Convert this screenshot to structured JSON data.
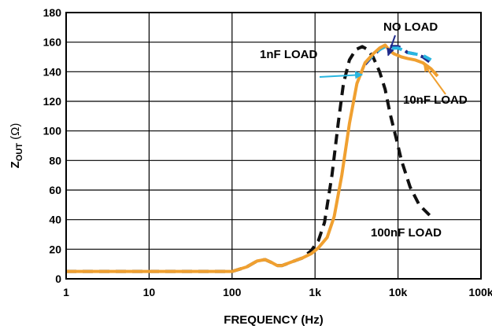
{
  "chart_data": {
    "type": "line",
    "xscale": "log",
    "xlim": [
      1,
      100000
    ],
    "ylim": [
      0,
      180
    ],
    "grid": true,
    "xlabel": "FREQUENCY (Hz)",
    "ylabel": {
      "main": "Z",
      "subscript": "OUT",
      "unit": " (Ω)"
    },
    "x_ticks": [
      {
        "value": 1,
        "label": "1"
      },
      {
        "value": 10,
        "label": "10"
      },
      {
        "value": 100,
        "label": "100"
      },
      {
        "value": 1000,
        "label": "1k"
      },
      {
        "value": 10000,
        "label": "10k"
      },
      {
        "value": 100000,
        "label": "100k"
      }
    ],
    "y_ticks": [
      0,
      20,
      40,
      60,
      80,
      100,
      120,
      140,
      160,
      180
    ],
    "series": [
      {
        "name": "100nF LOAD",
        "color": "#111111",
        "style": "dashed",
        "points": [
          [
            1,
            5
          ],
          [
            10,
            5
          ],
          [
            100,
            5
          ],
          [
            150,
            8
          ],
          [
            200,
            12
          ],
          [
            250,
            13
          ],
          [
            300,
            11
          ],
          [
            350,
            9
          ],
          [
            400,
            9
          ],
          [
            500,
            11
          ],
          [
            700,
            14
          ],
          [
            900,
            19
          ],
          [
            1100,
            26
          ],
          [
            1300,
            38
          ],
          [
            1600,
            70
          ],
          [
            1900,
            105
          ],
          [
            2200,
            132
          ],
          [
            2600,
            148
          ],
          [
            3100,
            155
          ],
          [
            3700,
            157
          ],
          [
            4300,
            155
          ],
          [
            5000,
            150
          ],
          [
            6000,
            140
          ],
          [
            7000,
            128
          ],
          [
            8000,
            112
          ],
          [
            9500,
            95
          ],
          [
            11000,
            80
          ],
          [
            14000,
            62
          ],
          [
            18000,
            50
          ],
          [
            24000,
            43
          ]
        ]
      },
      {
        "name": "NO LOAD",
        "color": "#1f2a8a",
        "style": "dashed",
        "points": [
          [
            4000,
            145
          ],
          [
            5000,
            151
          ],
          [
            6000,
            155
          ],
          [
            7000,
            158
          ],
          [
            8500,
            157
          ],
          [
            10000,
            157
          ],
          [
            11000,
            156
          ],
          [
            13000,
            153
          ],
          [
            16000,
            152
          ],
          [
            20000,
            150
          ],
          [
            25000,
            146
          ]
        ]
      },
      {
        "name": "10nF LOAD",
        "color": "#29b6e0",
        "style": "dashed",
        "points": [
          [
            4000,
            146
          ],
          [
            5000,
            151
          ],
          [
            6000,
            155
          ],
          [
            7000,
            157
          ],
          [
            8500,
            156
          ],
          [
            10000,
            156
          ],
          [
            11000,
            155
          ],
          [
            13000,
            153
          ],
          [
            16000,
            152
          ],
          [
            20000,
            151
          ],
          [
            25000,
            148
          ]
        ]
      },
      {
        "name": "1nF LOAD",
        "color": "#f0a030",
        "style": "solid",
        "points": [
          [
            1,
            5
          ],
          [
            10,
            5
          ],
          [
            100,
            5
          ],
          [
            150,
            8
          ],
          [
            200,
            12
          ],
          [
            250,
            13
          ],
          [
            300,
            11
          ],
          [
            350,
            9
          ],
          [
            400,
            9
          ],
          [
            500,
            11
          ],
          [
            700,
            14
          ],
          [
            900,
            17
          ],
          [
            1100,
            21
          ],
          [
            1400,
            28
          ],
          [
            1700,
            42
          ],
          [
            2100,
            70
          ],
          [
            2600,
            105
          ],
          [
            3200,
            132
          ],
          [
            4000,
            146
          ],
          [
            5000,
            152
          ],
          [
            6000,
            156
          ],
          [
            7000,
            158
          ],
          [
            8000,
            154
          ],
          [
            9000,
            152
          ],
          [
            10000,
            151
          ],
          [
            11000,
            150
          ],
          [
            13000,
            149
          ],
          [
            16000,
            148
          ],
          [
            20000,
            146
          ],
          [
            25000,
            142
          ],
          [
            30000,
            137
          ]
        ]
      }
    ],
    "annotations": [
      {
        "text": "NO LOAD",
        "arrow_color": "#1f2a8a"
      },
      {
        "text": "1nF LOAD",
        "arrow_color": "#29b6e0"
      },
      {
        "text": "10nF LOAD",
        "arrow_color": "#f0a030"
      },
      {
        "text": "100nF LOAD"
      }
    ]
  }
}
